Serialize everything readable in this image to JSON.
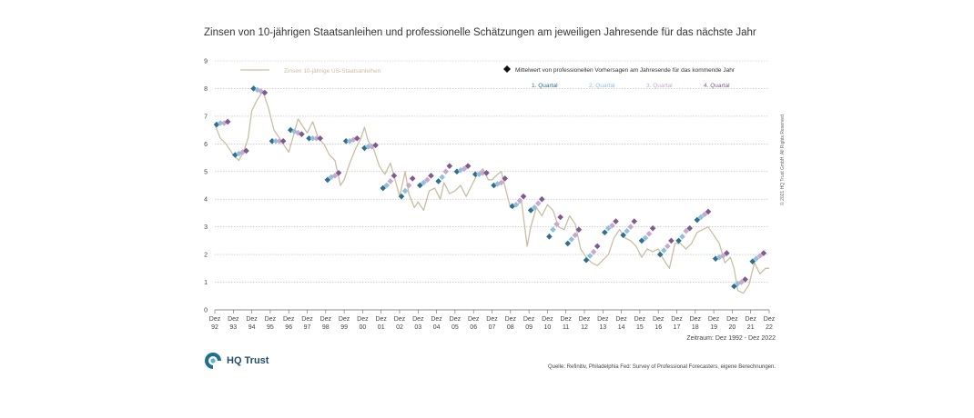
{
  "page_title": "Zinsen von 10-jährigen Staatsanleihen und professionelle Schätzungen am jeweiligen Jahresende für das nächste Jahr",
  "copyright": "© 2021 HQ Trust GmbH. All Rights Reserved.",
  "period_note": "Zeitraum: Dez 1992 - Dez 2022",
  "source_note": "Quelle: Refinitiv, Philadelphia Fed: Survey of Professional Forecasters, eigene Berechnungen.",
  "brand": {
    "name": "HQ Trust"
  },
  "colors": {
    "yield_line": "#c9bea3",
    "q1": "#2e6f8e",
    "q2": "#8fc1dc",
    "q3": "#c7a9cf",
    "q4": "#7e5a8e",
    "grid": "#b9b9b9"
  },
  "chart_data": {
    "type": "line",
    "title": "Zinsen von 10-jährigen Staatsanleihen und professionelle Schätzungen am jeweiligen Jahresende für das nächste Jahr",
    "xlabel": "",
    "ylabel": "",
    "ylim": [
      0,
      9
    ],
    "yticks": [
      0,
      1,
      2,
      3,
      4,
      5,
      6,
      7,
      8,
      9
    ],
    "xlim": [
      1992,
      2022
    ],
    "xtick_labels": [
      [
        "Dez",
        "92"
      ],
      [
        "Dez",
        "93"
      ],
      [
        "Dez",
        "94"
      ],
      [
        "Dez",
        "95"
      ],
      [
        "Dez",
        "96"
      ],
      [
        "Dez",
        "97"
      ],
      [
        "Dez",
        "98"
      ],
      [
        "Dez",
        "99"
      ],
      [
        "Dez",
        "00"
      ],
      [
        "Dez",
        "01"
      ],
      [
        "Dez",
        "02"
      ],
      [
        "Dez",
        "03"
      ],
      [
        "Dez",
        "04"
      ],
      [
        "Dez",
        "05"
      ],
      [
        "Dez",
        "06"
      ],
      [
        "Dez",
        "07"
      ],
      [
        "Dez",
        "08"
      ],
      [
        "Dez",
        "09"
      ],
      [
        "Dez",
        "10"
      ],
      [
        "Dez",
        "11"
      ],
      [
        "Dez",
        "12"
      ],
      [
        "Dez",
        "13"
      ],
      [
        "Dez",
        "14"
      ],
      [
        "Dez",
        "15"
      ],
      [
        "Dez",
        "16"
      ],
      [
        "Dez",
        "17"
      ],
      [
        "Dez",
        "18"
      ],
      [
        "Dez",
        "19"
      ],
      [
        "Dez",
        "20"
      ],
      [
        "Dez",
        "21"
      ],
      [
        "Dez",
        "22"
      ]
    ],
    "legend": {
      "yield_label": "Zinsen 10-jährige US-Staatsanleihen",
      "forecast_label": "Mittelwert von professionellen Vorhersagen am Jahresende für das kommende Jahr",
      "quarters": [
        "1. Quartal",
        "2. Quartal",
        "3. Quartal",
        "4. Quartal"
      ],
      "placement": "top"
    },
    "series": [
      {
        "name": "Zinsen 10-jährige US-Staatsanleihen",
        "x": [
          1992.0,
          1992.3,
          1992.6,
          1993.0,
          1993.3,
          1993.6,
          1993.8,
          1994.0,
          1994.3,
          1994.6,
          1994.9,
          1995.2,
          1995.5,
          1995.8,
          1996.0,
          1996.3,
          1996.5,
          1996.8,
          1997.0,
          1997.3,
          1997.6,
          1997.9,
          1998.2,
          1998.5,
          1998.8,
          1999.0,
          1999.3,
          1999.6,
          1999.9,
          2000.1,
          2000.3,
          2000.6,
          2000.9,
          2001.2,
          2001.5,
          2001.8,
          2002.0,
          2002.3,
          2002.5,
          2002.8,
          2003.0,
          2003.3,
          2003.6,
          2003.9,
          2004.2,
          2004.4,
          2004.7,
          2005.0,
          2005.3,
          2005.6,
          2005.9,
          2006.2,
          2006.5,
          2006.8,
          2007.0,
          2007.3,
          2007.5,
          2007.8,
          2008.0,
          2008.3,
          2008.6,
          2008.9,
          2009.1,
          2009.4,
          2009.7,
          2010.0,
          2010.3,
          2010.6,
          2010.9,
          2011.2,
          2011.5,
          2011.8,
          2012.1,
          2012.4,
          2012.7,
          2013.0,
          2013.3,
          2013.6,
          2013.9,
          2014.2,
          2014.5,
          2014.8,
          2015.1,
          2015.4,
          2015.7,
          2016.0,
          2016.3,
          2016.6,
          2016.9,
          2017.2,
          2017.5,
          2017.8,
          2018.1,
          2018.4,
          2018.7,
          2019.0,
          2019.3,
          2019.6,
          2019.9,
          2020.1,
          2020.3,
          2020.6,
          2020.9,
          2021.2,
          2021.5,
          2021.8,
          2022.0
        ],
        "values": [
          6.7,
          6.2,
          6.0,
          5.6,
          5.4,
          5.8,
          6.2,
          7.2,
          7.6,
          7.9,
          7.3,
          6.5,
          6.2,
          5.9,
          5.7,
          6.4,
          6.9,
          6.6,
          6.4,
          6.8,
          6.2,
          6.0,
          5.6,
          5.4,
          4.5,
          4.7,
          5.3,
          5.8,
          6.2,
          6.6,
          6.1,
          5.8,
          5.2,
          4.9,
          5.3,
          4.6,
          4.1,
          5.0,
          4.2,
          3.7,
          3.9,
          3.6,
          4.3,
          4.4,
          4.0,
          4.6,
          4.2,
          4.3,
          4.5,
          4.1,
          4.5,
          4.9,
          5.1,
          4.7,
          4.7,
          4.9,
          5.0,
          4.2,
          3.7,
          3.8,
          3.9,
          2.3,
          3.0,
          3.7,
          3.4,
          3.8,
          3.6,
          3.0,
          2.9,
          3.4,
          3.1,
          2.2,
          1.9,
          1.7,
          1.6,
          1.8,
          2.0,
          2.6,
          2.9,
          2.6,
          2.5,
          2.3,
          1.9,
          2.2,
          2.1,
          2.2,
          1.8,
          1.5,
          2.4,
          2.4,
          2.2,
          2.4,
          2.8,
          2.9,
          3.0,
          2.7,
          2.4,
          1.7,
          1.9,
          1.5,
          0.7,
          0.6,
          0.9,
          1.7,
          1.3,
          1.5,
          1.5
        ]
      }
    ],
    "forecasts": [
      {
        "year": "93",
        "q": [
          6.7,
          6.75,
          6.75,
          6.8
        ]
      },
      {
        "year": "94",
        "q": [
          5.6,
          5.65,
          5.7,
          5.75
        ]
      },
      {
        "year": "95",
        "q": [
          8.0,
          7.95,
          7.9,
          7.85
        ]
      },
      {
        "year": "96",
        "q": [
          6.1,
          6.1,
          6.1,
          6.1
        ]
      },
      {
        "year": "97",
        "q": [
          6.5,
          6.45,
          6.4,
          6.35
        ]
      },
      {
        "year": "98",
        "q": [
          6.2,
          6.2,
          6.2,
          6.2
        ]
      },
      {
        "year": "99",
        "q": [
          4.7,
          4.8,
          4.85,
          4.95
        ]
      },
      {
        "year": "00",
        "q": [
          6.1,
          6.1,
          6.15,
          6.2
        ]
      },
      {
        "year": "01",
        "q": [
          5.85,
          5.9,
          5.9,
          5.95
        ]
      },
      {
        "year": "02",
        "q": [
          4.4,
          4.5,
          4.65,
          4.85
        ]
      },
      {
        "year": "03",
        "q": [
          4.1,
          4.3,
          4.5,
          4.75
        ]
      },
      {
        "year": "04",
        "q": [
          4.5,
          4.6,
          4.7,
          4.85
        ]
      },
      {
        "year": "05",
        "q": [
          4.65,
          4.8,
          5.0,
          5.2
        ]
      },
      {
        "year": "06",
        "q": [
          5.0,
          5.05,
          5.1,
          5.2
        ]
      },
      {
        "year": "07",
        "q": [
          4.9,
          4.9,
          4.95,
          4.95
        ]
      },
      {
        "year": "08",
        "q": [
          4.5,
          4.55,
          4.6,
          4.75
        ]
      },
      {
        "year": "09",
        "q": [
          3.75,
          3.8,
          3.95,
          4.1
        ]
      },
      {
        "year": "10",
        "q": [
          3.6,
          3.7,
          3.85,
          4.0
        ]
      },
      {
        "year": "11",
        "q": [
          2.65,
          2.9,
          3.1,
          3.35
        ]
      },
      {
        "year": "12",
        "q": [
          2.4,
          2.55,
          2.7,
          2.9
        ]
      },
      {
        "year": "13",
        "q": [
          1.8,
          1.95,
          2.1,
          2.3
        ]
      },
      {
        "year": "14",
        "q": [
          2.8,
          2.95,
          3.05,
          3.2
        ]
      },
      {
        "year": "15",
        "q": [
          2.7,
          2.85,
          3.0,
          3.2
        ]
      },
      {
        "year": "16",
        "q": [
          2.5,
          2.6,
          2.75,
          2.95
        ]
      },
      {
        "year": "17",
        "q": [
          2.0,
          2.15,
          2.3,
          2.5
        ]
      },
      {
        "year": "18",
        "q": [
          2.5,
          2.65,
          2.85,
          2.95
        ]
      },
      {
        "year": "19",
        "q": [
          3.25,
          3.35,
          3.45,
          3.55
        ]
      },
      {
        "year": "20",
        "q": [
          1.85,
          1.9,
          1.95,
          2.05
        ]
      },
      {
        "year": "21",
        "q": [
          0.85,
          0.95,
          1.0,
          1.1
        ]
      },
      {
        "year": "22",
        "q": [
          1.75,
          1.85,
          1.95,
          2.05
        ]
      }
    ]
  }
}
